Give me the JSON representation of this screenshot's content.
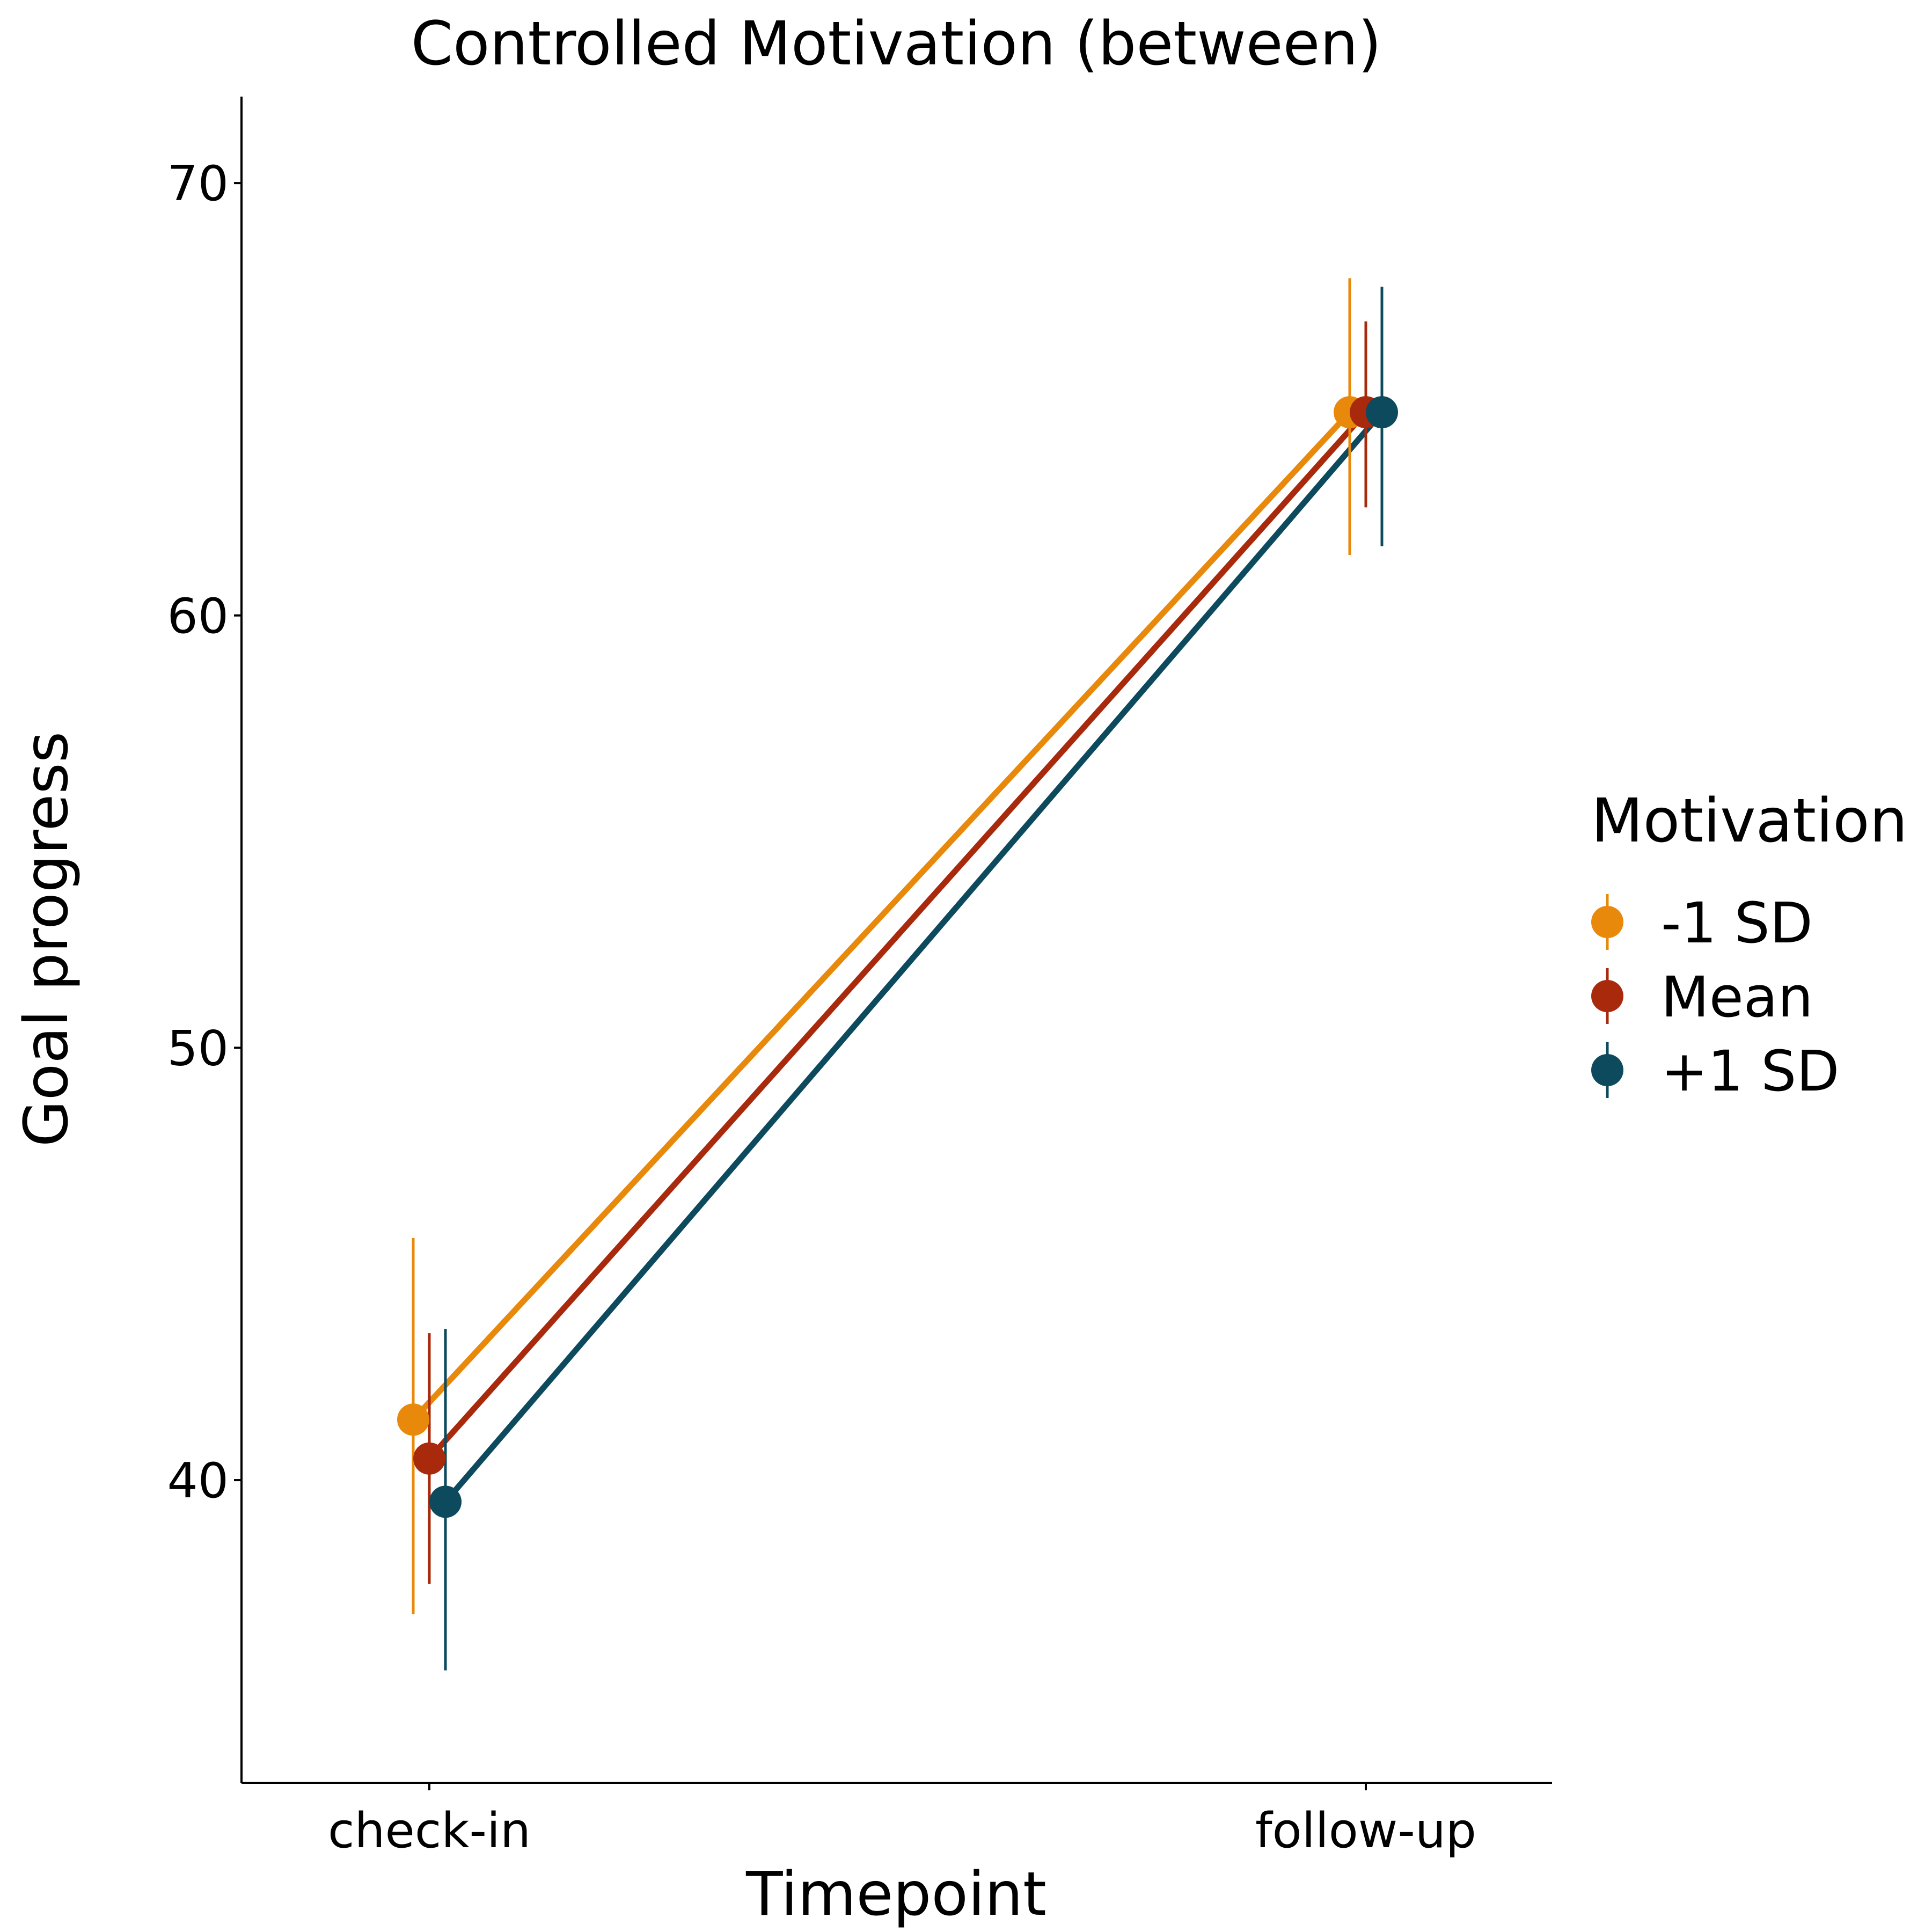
{
  "chart_data": {
    "type": "line",
    "title": "Controlled Motivation (between)",
    "xlabel": "Timepoint",
    "ylabel": "Goal progress",
    "categories": [
      "check-in",
      "follow-up"
    ],
    "ylim": [
      33,
      72
    ],
    "yticks": [
      40,
      50,
      60,
      70
    ],
    "grid": false,
    "legend": {
      "title": "Motivation",
      "placement": "right"
    },
    "series": [
      {
        "name": "-1 SD",
        "color": "#E8890C",
        "values": [
          41.4,
          64.7
        ],
        "ci_low": [
          36.9,
          61.4
        ],
        "ci_high": [
          45.6,
          67.8
        ]
      },
      {
        "name": "Mean",
        "color": "#A8290C",
        "values": [
          40.5,
          64.7
        ],
        "ci_low": [
          37.6,
          62.5
        ],
        "ci_high": [
          43.4,
          66.8
        ]
      },
      {
        "name": "+1 SD",
        "color": "#0D4A5E",
        "values": [
          39.5,
          64.7
        ],
        "ci_low": [
          35.6,
          61.6
        ],
        "ci_high": [
          43.5,
          67.6
        ]
      }
    ]
  }
}
